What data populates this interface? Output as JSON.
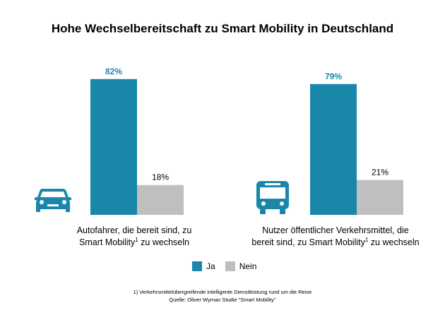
{
  "title": "Hohe Wechselbereitschaft zu Smart Mobility in Deutschland",
  "colors": {
    "ja": "#1a87aa",
    "nein": "#bfbfbf",
    "ja_label": "#1a87aa",
    "nein_label": "#000000"
  },
  "chart_data": {
    "type": "bar",
    "title": "Hohe Wechselbereitschaft zu Smart Mobility in Deutschland",
    "unit": "%",
    "ylim": [
      0,
      100
    ],
    "categories": [
      "Autofahrer, die bereit sind, zu Smart Mobility¹ zu wechseln",
      "Nutzer öffentlicher Verkehrsmittel, die bereit sind, zu Smart Mobility¹ zu wechseln"
    ],
    "series": [
      {
        "name": "Ja",
        "values": [
          82,
          79
        ],
        "labels": [
          "82%",
          "79%"
        ]
      },
      {
        "name": "Nein",
        "values": [
          18,
          21
        ],
        "labels": [
          "18%",
          "21%"
        ]
      }
    ]
  },
  "groups": [
    {
      "label_line1": "Autofahrer, die bereit sind, zu",
      "label_line2_pre": "Smart Mobility",
      "sup": "1",
      "label_line2_post": " zu wechseln",
      "icon": "car-icon"
    },
    {
      "label_line1": "Nutzer öffentlicher Verkehrsmittel, die",
      "label_line2_pre": "bereit sind, zu Smart Mobility",
      "sup": "1",
      "label_line2_post": " zu wechseln",
      "icon": "bus-icon"
    }
  ],
  "legend": {
    "ja": "Ja",
    "nein": "Nein"
  },
  "footnote": {
    "line1": "1) Verkehrsmittelübergreifende  intelligente Dienstleistung rund um die Reise",
    "line2": "Quelle: Oliver Wyman Studie \"Smart Mobility\""
  }
}
